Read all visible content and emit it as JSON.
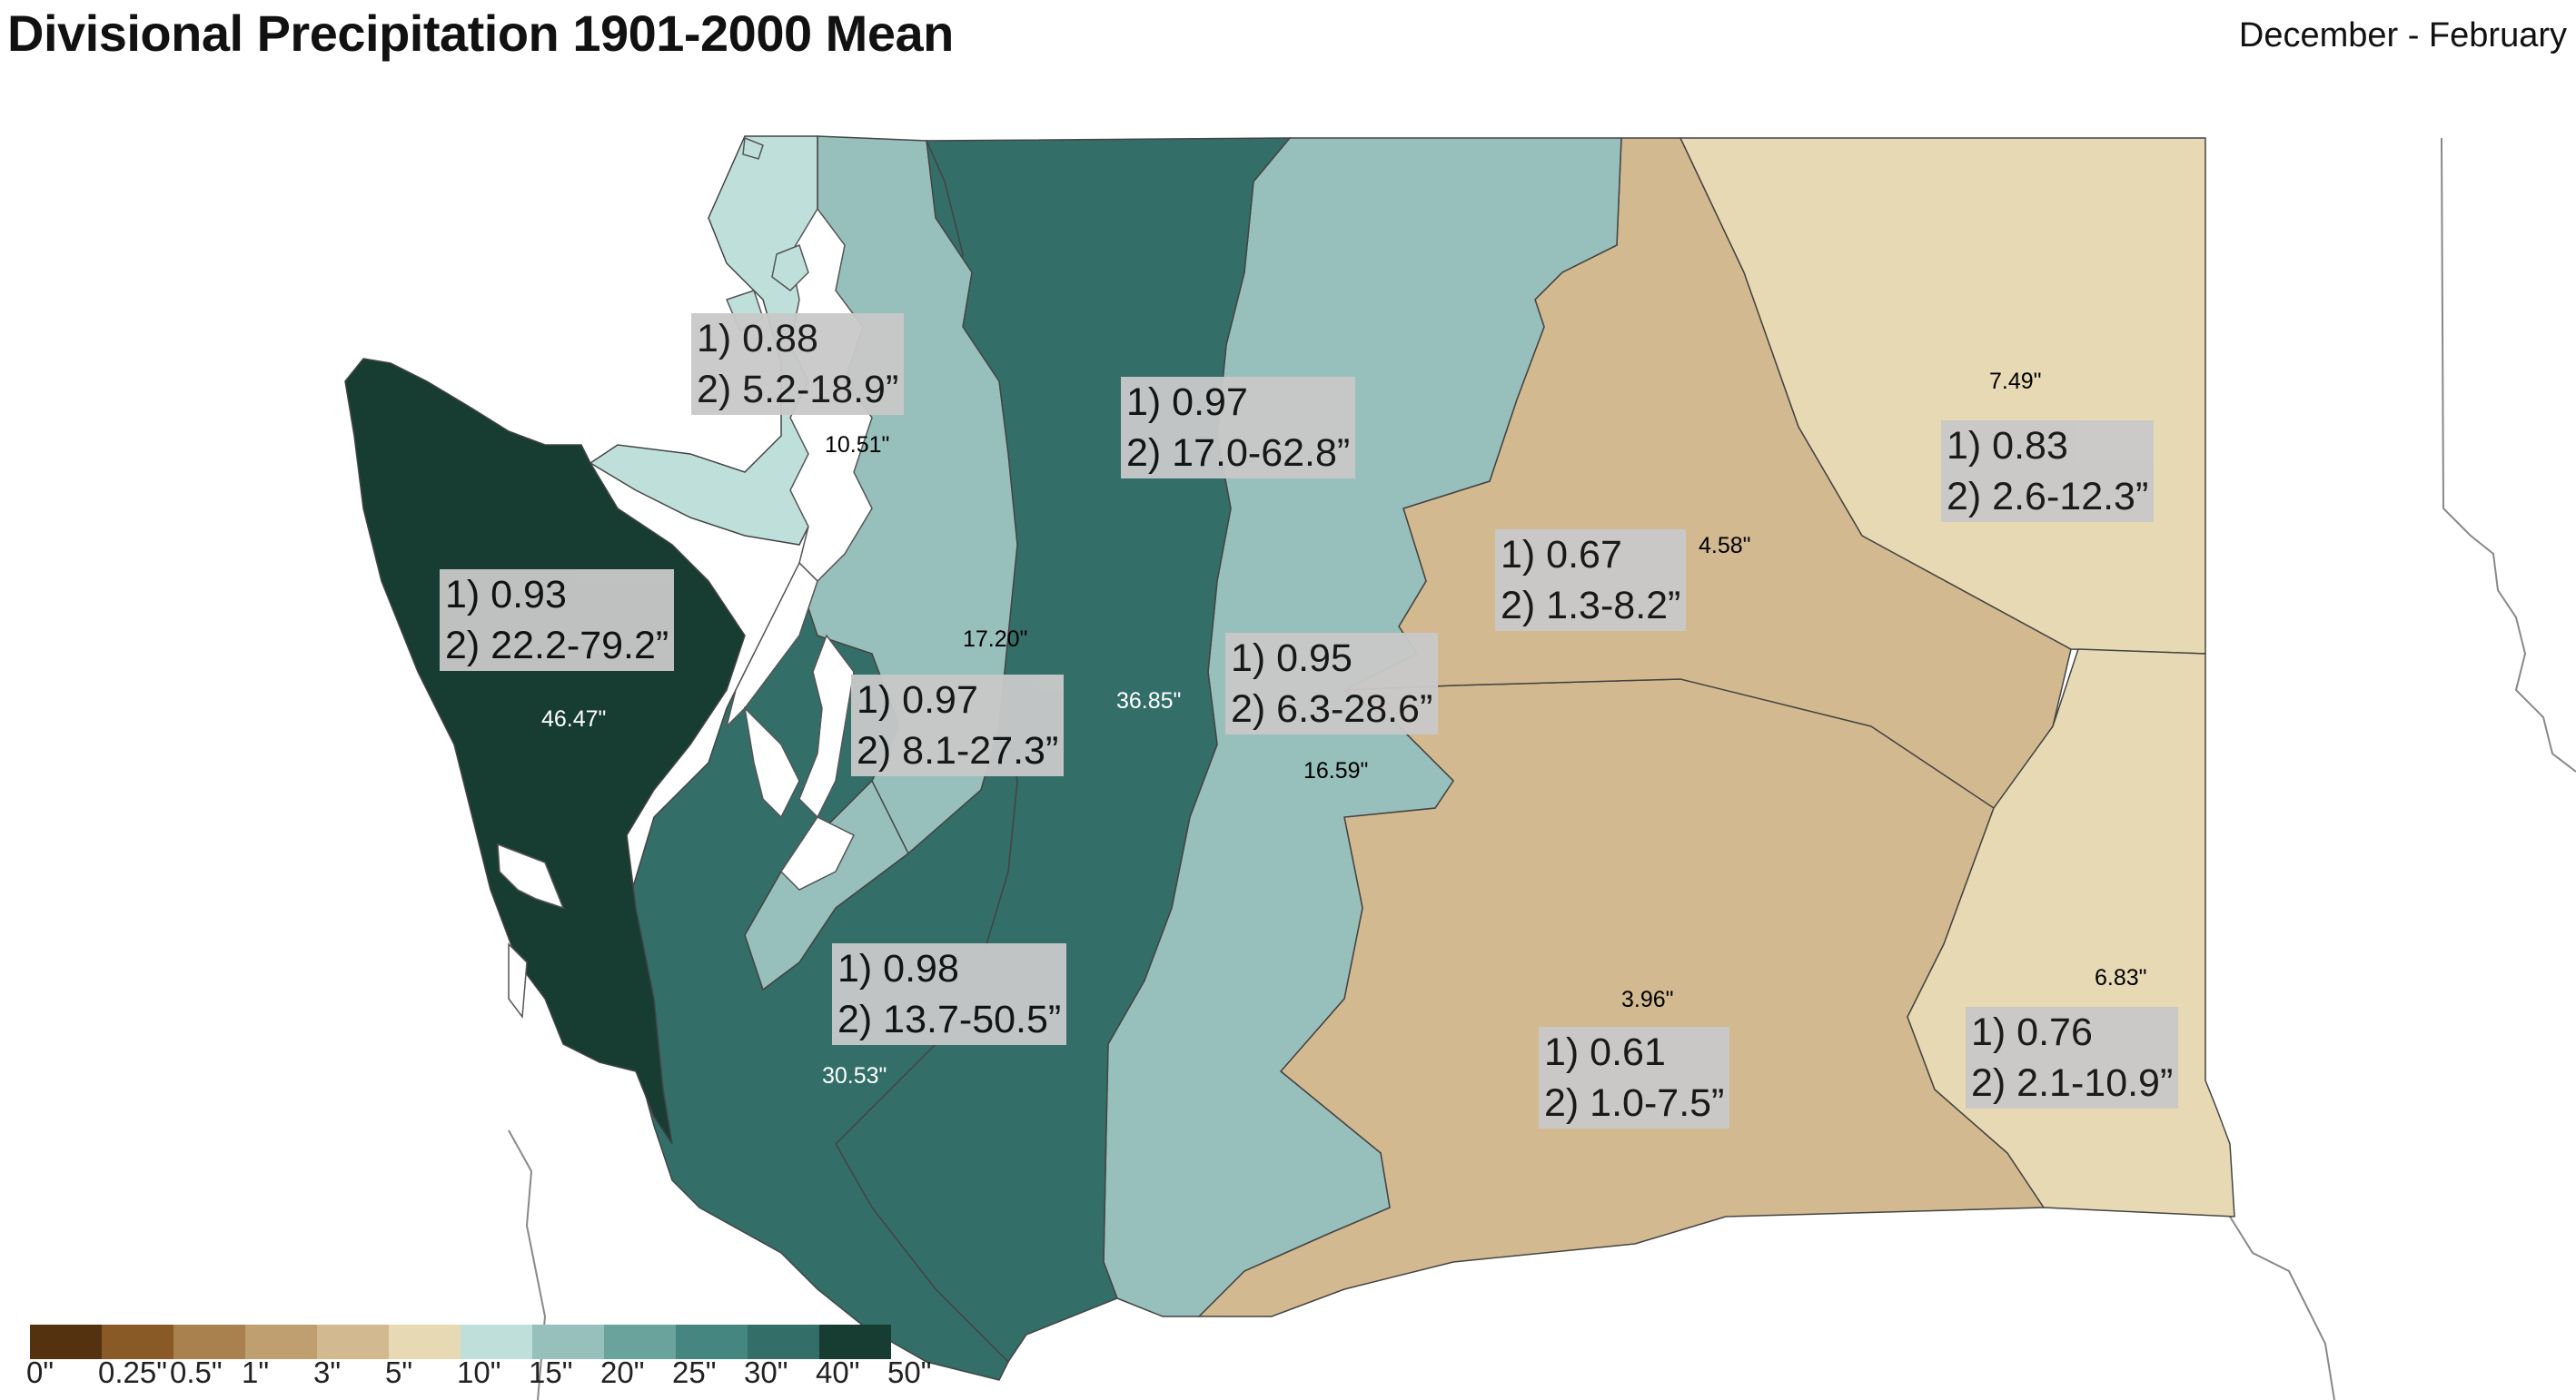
{
  "title": "Divisional Precipitation 1901-2000 Mean",
  "season": "December - February",
  "divisions": [
    {
      "id": "west-olympic",
      "r": "1) 0.93",
      "range": "2) 22.2-79.2”",
      "mean": "46.47\"",
      "color": "#173d32"
    },
    {
      "id": "northwest-interior",
      "r": "1) 0.88",
      "range": "2) 5.2-18.9”",
      "mean": "10.51\"",
      "color": "#bfe0da"
    },
    {
      "id": "puget-lowlands",
      "r": "1) 0.97",
      "range": "2) 8.1-27.3”",
      "mean": "17.20\"",
      "color": "#97bfbb"
    },
    {
      "id": "southwest-interior",
      "r": "1) 0.98",
      "range": "2) 13.7-50.5”",
      "mean": "30.53\"",
      "color": "#336e68"
    },
    {
      "id": "cascades-west",
      "r": "1) 0.97",
      "range": "2) 17.0-62.8”",
      "mean": "36.85\"",
      "color": "#336e68"
    },
    {
      "id": "cascades-east",
      "r": "1) 0.95",
      "range": "2) 6.3-28.6”",
      "mean": "16.59\"",
      "color": "#97bfbb"
    },
    {
      "id": "okanogan-big-bend",
      "r": "1) 0.67",
      "range": "2) 1.3-8.2”",
      "mean": "4.58\"",
      "color": "#d2b990"
    },
    {
      "id": "northeastern",
      "r": "1) 0.83",
      "range": "2) 2.6-12.3”",
      "mean": "7.49\"",
      "color": "#e7d9b3"
    },
    {
      "id": "central-basin",
      "r": "1) 0.61",
      "range": "2) 1.0-7.5”",
      "mean": "3.96\"",
      "color": "#d2b990"
    },
    {
      "id": "palouse-blue-mountains",
      "r": "1) 0.76",
      "range": "2) 2.1-10.9”",
      "mean": "6.83\"",
      "color": "#e7d9b3"
    }
  ],
  "legend": {
    "colors": [
      "#543210",
      "#8a5a26",
      "#a8814e",
      "#bf9f6f",
      "#d2b990",
      "#e7d9b3",
      "#bfe0da",
      "#97bfbb",
      "#6aa39b",
      "#458780",
      "#336e68",
      "#173d32"
    ],
    "labels": [
      "0\"",
      "0.25\"",
      "0.5\"",
      "1\"",
      "3\"",
      "5\"",
      "10\"",
      "15\"",
      "20\"",
      "25\"",
      "30\"",
      "40\"",
      "50\""
    ]
  }
}
